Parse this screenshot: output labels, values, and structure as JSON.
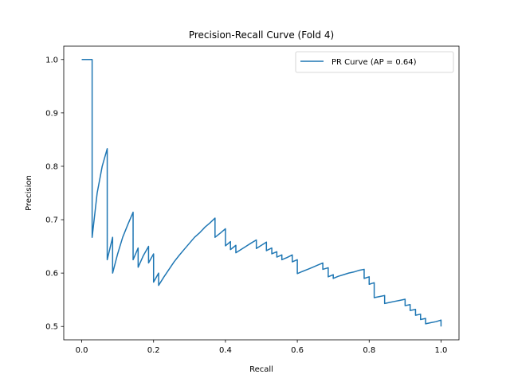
{
  "chart_data": {
    "type": "line",
    "title": "Precision-Recall Curve (Fold 4)",
    "xlabel": "Recall",
    "ylabel": "Precision",
    "xlim": [
      -0.05,
      1.05
    ],
    "ylim": [
      0.475,
      1.025
    ],
    "xticks": [
      0.0,
      0.2,
      0.4,
      0.6,
      0.8,
      1.0
    ],
    "xtick_labels": [
      "0.0",
      "0.2",
      "0.4",
      "0.6",
      "0.8",
      "1.0"
    ],
    "yticks": [
      0.5,
      0.6,
      0.7,
      0.8,
      0.9,
      1.0
    ],
    "ytick_labels": [
      "0.5",
      "0.6",
      "0.7",
      "0.8",
      "0.9",
      "1.0"
    ],
    "grid": false,
    "legend_position": "top-right",
    "series": [
      {
        "name": "PR Curve (AP = 0.64)",
        "color": "#1f77b4",
        "x": [
          0.0,
          0.029,
          0.029,
          0.043,
          0.057,
          0.071,
          0.071,
          0.086,
          0.086,
          0.1,
          0.114,
          0.129,
          0.143,
          0.143,
          0.157,
          0.157,
          0.171,
          0.186,
          0.186,
          0.2,
          0.2,
          0.214,
          0.214,
          0.229,
          0.243,
          0.257,
          0.271,
          0.286,
          0.3,
          0.314,
          0.329,
          0.343,
          0.357,
          0.371,
          0.371,
          0.386,
          0.4,
          0.4,
          0.414,
          0.414,
          0.429,
          0.429,
          0.443,
          0.457,
          0.471,
          0.486,
          0.486,
          0.5,
          0.514,
          0.514,
          0.529,
          0.529,
          0.543,
          0.543,
          0.557,
          0.557,
          0.571,
          0.586,
          0.586,
          0.6,
          0.6,
          0.614,
          0.629,
          0.643,
          0.657,
          0.671,
          0.671,
          0.686,
          0.686,
          0.7,
          0.7,
          0.714,
          0.729,
          0.743,
          0.757,
          0.771,
          0.786,
          0.786,
          0.8,
          0.8,
          0.814,
          0.814,
          0.829,
          0.843,
          0.843,
          0.857,
          0.871,
          0.886,
          0.9,
          0.9,
          0.914,
          0.914,
          0.929,
          0.929,
          0.943,
          0.943,
          0.957,
          0.957,
          0.971,
          0.986,
          1.0,
          1.0
        ],
        "y": [
          1.0,
          1.0,
          0.667,
          0.75,
          0.8,
          0.833,
          0.625,
          0.667,
          0.6,
          0.636,
          0.667,
          0.692,
          0.714,
          0.625,
          0.647,
          0.611,
          0.632,
          0.65,
          0.619,
          0.636,
          0.583,
          0.6,
          0.577,
          0.593,
          0.607,
          0.621,
          0.633,
          0.645,
          0.656,
          0.667,
          0.676,
          0.686,
          0.694,
          0.703,
          0.667,
          0.675,
          0.683,
          0.651,
          0.659,
          0.644,
          0.652,
          0.638,
          0.644,
          0.65,
          0.656,
          0.662,
          0.646,
          0.652,
          0.658,
          0.642,
          0.647,
          0.636,
          0.64,
          0.63,
          0.634,
          0.625,
          0.629,
          0.634,
          0.621,
          0.625,
          0.599,
          0.603,
          0.607,
          0.611,
          0.615,
          0.619,
          0.607,
          0.61,
          0.593,
          0.597,
          0.59,
          0.594,
          0.597,
          0.6,
          0.602,
          0.605,
          0.607,
          0.59,
          0.593,
          0.579,
          0.582,
          0.554,
          0.556,
          0.558,
          0.543,
          0.545,
          0.547,
          0.549,
          0.551,
          0.539,
          0.541,
          0.53,
          0.532,
          0.521,
          0.523,
          0.513,
          0.515,
          0.505,
          0.507,
          0.509,
          0.512,
          0.5
        ]
      }
    ]
  }
}
